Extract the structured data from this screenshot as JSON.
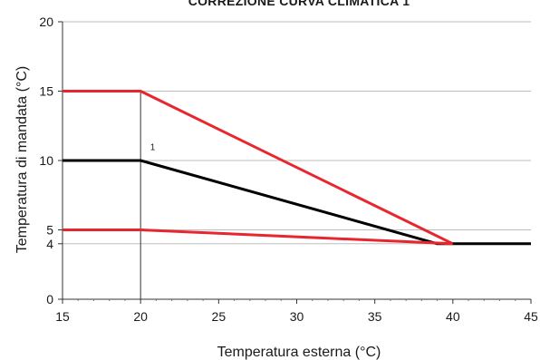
{
  "chart_data": {
    "type": "line",
    "title": "CORREZIONE CURVA CLIMATICA 1",
    "xlabel": "Temperatura esterna (°C)",
    "ylabel": "Temperatura di mandata (°C)",
    "xlim": [
      15,
      45
    ],
    "ylim": [
      0,
      20
    ],
    "x_ticks": [
      15,
      20,
      25,
      30,
      35,
      40,
      45
    ],
    "y_ticks": [
      0,
      4,
      5,
      10,
      15,
      20
    ],
    "grid": true,
    "series": [
      {
        "color": "#e8262d",
        "x": [
          15,
          20,
          40
        ],
        "y": [
          15,
          15,
          4
        ]
      },
      {
        "color": "#000000",
        "x": [
          15,
          20,
          39,
          45
        ],
        "y": [
          10,
          10,
          4,
          4
        ]
      },
      {
        "color": "#e8262d",
        "x": [
          15,
          20,
          40
        ],
        "y": [
          5,
          5,
          4
        ]
      }
    ],
    "vertical_marker_x": 20,
    "annotations": [
      {
        "text": "1",
        "x": 20.5,
        "y": 10.5
      }
    ]
  }
}
